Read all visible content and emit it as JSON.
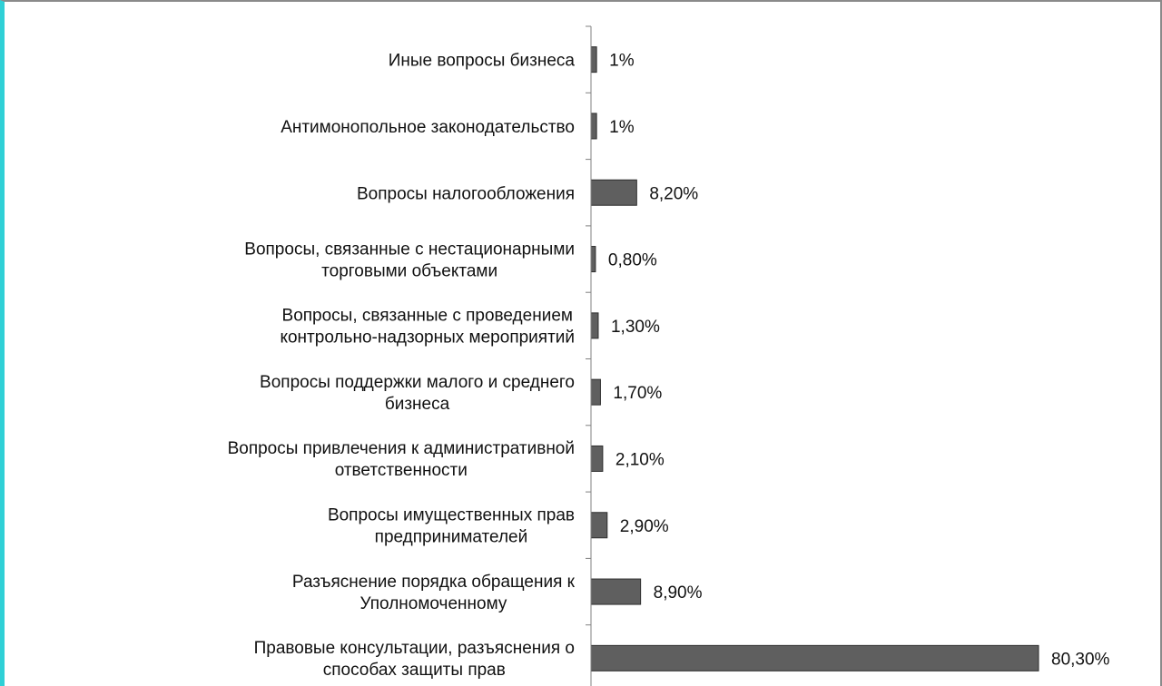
{
  "colors": {
    "bar_fill": "#5f5f5f",
    "bar_stroke": "#2e2e2e",
    "axis": "#808080",
    "frame_accent": "#2fd0d6"
  },
  "chart_data": {
    "type": "bar",
    "orientation": "horizontal",
    "title": "",
    "xlabel": "",
    "ylabel": "",
    "grid": false,
    "legend": "none",
    "categories": [
      "Иные вопросы бизнеса",
      "Антимонопольное законодательство",
      "Вопросы налогообложения",
      "Вопросы, связанные с нестационарными торговыми объектами",
      "Вопросы, связанные с проведением контрольно-надзорных мероприятий",
      "Вопросы поддержки малого и среднего бизнеса",
      "Вопросы привлечения к административной ответственности",
      "Вопросы имущественных прав предпринимателей",
      "Разъяснение порядка обращения к Уполномоченному",
      "Правовые консультации, разъяснения о способах защиты прав"
    ],
    "category_lines": [
      [
        "Иные вопросы бизнеса"
      ],
      [
        "Антимонопольное законодательство"
      ],
      [
        "Вопросы налогообложения"
      ],
      [
        "Вопросы, связанные с нестационарными",
        "торговыми объектами"
      ],
      [
        "Вопросы, связанные с проведением",
        "контрольно-надзорных мероприятий"
      ],
      [
        "Вопросы поддержки малого и среднего",
        "бизнеса"
      ],
      [
        "Вопросы привлечения к административной",
        "ответственности"
      ],
      [
        "Вопросы имущественных прав",
        "предпринимателей"
      ],
      [
        "Разъяснение порядка обращения к",
        "Уполномоченному"
      ],
      [
        "Правовые консультации, разъяснения о",
        "способах защиты прав"
      ]
    ],
    "values": [
      1,
      1,
      8.2,
      0.8,
      1.3,
      1.7,
      2.1,
      2.9,
      8.9,
      80.3
    ],
    "value_labels": [
      "1%",
      "1%",
      "8,20%",
      "0,80%",
      "1,30%",
      "1,70%",
      "2,10%",
      "2,90%",
      "8,90%",
      "80,30%"
    ],
    "xlim": [
      0,
      85
    ]
  }
}
